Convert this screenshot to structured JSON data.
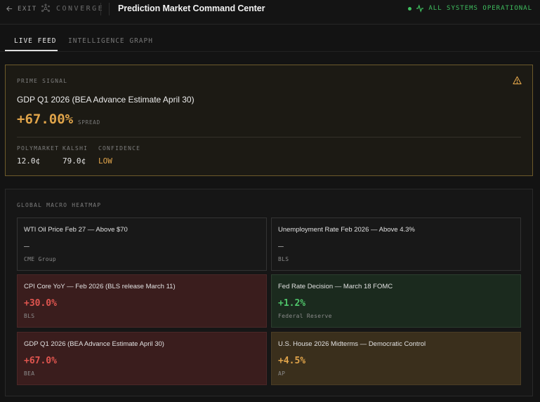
{
  "header": {
    "exit_label": "EXIT",
    "brand": "CONVERGE",
    "title": "Prediction Market Command Center",
    "status": "ALL SYSTEMS OPERATIONAL"
  },
  "tabs": [
    {
      "label": "LIVE FEED",
      "active": true
    },
    {
      "label": "INTELLIGENCE GRAPH",
      "active": false
    }
  ],
  "prime_signal": {
    "heading": "PRIME SIGNAL",
    "market": "GDP Q1 2026 (BEA Advance Estimate April 30)",
    "spread": "+67.00%",
    "spread_label": "SPREAD",
    "stats": [
      {
        "label": "POLYMARKET",
        "value": "12.0¢"
      },
      {
        "label": "KALSHI",
        "value": "79.0¢"
      },
      {
        "label": "CONFIDENCE",
        "value": "LOW"
      }
    ]
  },
  "heatmap": {
    "heading": "GLOBAL MACRO HEATMAP",
    "cells": [
      {
        "name": "WTI Oil Price Feb 27 — Above $70",
        "value": "—",
        "source": "CME Group",
        "tone": "neutral"
      },
      {
        "name": "Unemployment Rate Feb 2026 — Above 4.3%",
        "value": "—",
        "source": "BLS",
        "tone": "neutral"
      },
      {
        "name": "CPI Core YoY — Feb 2026 (BLS release March 11)",
        "value": "+30.0%",
        "source": "BLS",
        "tone": "red"
      },
      {
        "name": "Fed Rate Decision — March 18 FOMC",
        "value": "+1.2%",
        "source": "Federal Reserve",
        "tone": "green"
      },
      {
        "name": "GDP Q1 2026 (BEA Advance Estimate April 30)",
        "value": "+67.0%",
        "source": "BEA",
        "tone": "red"
      },
      {
        "name": "U.S. House 2026 Midterms — Democratic Control",
        "value": "+4.5%",
        "source": "AP",
        "tone": "amber"
      }
    ]
  },
  "colors": {
    "accent_amber": "#e0a44a",
    "positive_green": "#4fc46a",
    "negative_red": "#e0554f",
    "status_green": "#3fbf5f"
  }
}
